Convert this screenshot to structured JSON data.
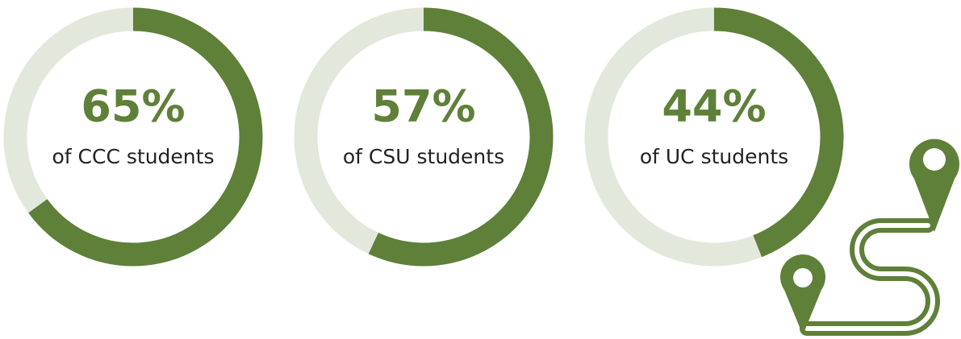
{
  "chart_data": [
    {
      "type": "donut",
      "values": [
        65
      ],
      "value_labels": [
        "65%"
      ],
      "subtitle": "of CCC students",
      "color": "#5e8038",
      "track_color": "#e3e8dc"
    },
    {
      "type": "donut",
      "values": [
        57
      ],
      "value_labels": [
        "57%"
      ],
      "subtitle": "of CSU students",
      "color": "#5e8038",
      "track_color": "#e3e8dc"
    },
    {
      "type": "donut",
      "values": [
        44
      ],
      "value_labels": [
        "44%"
      ],
      "subtitle": "of UC students",
      "color": "#5e8038",
      "track_color": "#e3e8dc"
    }
  ]
}
